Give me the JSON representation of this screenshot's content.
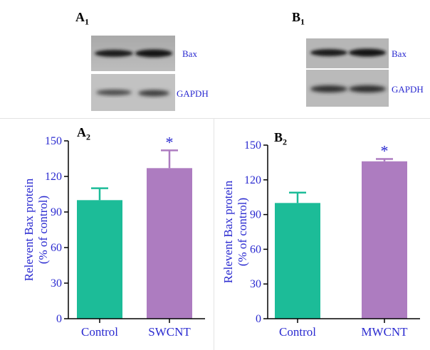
{
  "panels": {
    "a1": {
      "letter": "A",
      "sub": "1"
    },
    "b1": {
      "letter": "B",
      "sub": "1"
    },
    "a2": {
      "letter": "A",
      "sub": "2"
    },
    "b2": {
      "letter": "B",
      "sub": "2"
    }
  },
  "blots": {
    "a": {
      "top_label": "Bax",
      "bottom_label": "GAPDH"
    },
    "b": {
      "top_label": "Bax",
      "bottom_label": "GAPDH"
    }
  },
  "colors": {
    "control": "#1cbc98",
    "treatment": "#ad7cc0",
    "axis_text": "#2a2ad0",
    "axis": "#000000"
  },
  "chart_data": [
    {
      "type": "bar",
      "panel": "A2",
      "categories": [
        "Control",
        "SWCNT"
      ],
      "values": [
        100,
        127
      ],
      "error": [
        10,
        15
      ],
      "significance": [
        "",
        "*"
      ],
      "ylabel_lines": [
        "Relevent Bax protein",
        "(% of control)"
      ],
      "yticks": [
        "0",
        "30",
        "60",
        "90",
        "120",
        "150"
      ],
      "ylim": [
        0,
        150
      ]
    },
    {
      "type": "bar",
      "panel": "B2",
      "categories": [
        "Control",
        "MWCNT"
      ],
      "values": [
        100,
        136
      ],
      "error": [
        9,
        2
      ],
      "significance": [
        "",
        "*"
      ],
      "ylabel_lines": [
        "Relevent Bax protein",
        "(% of control)"
      ],
      "yticks": [
        "0",
        "30",
        "60",
        "90",
        "120",
        "150"
      ],
      "ylim": [
        0,
        150
      ]
    }
  ]
}
